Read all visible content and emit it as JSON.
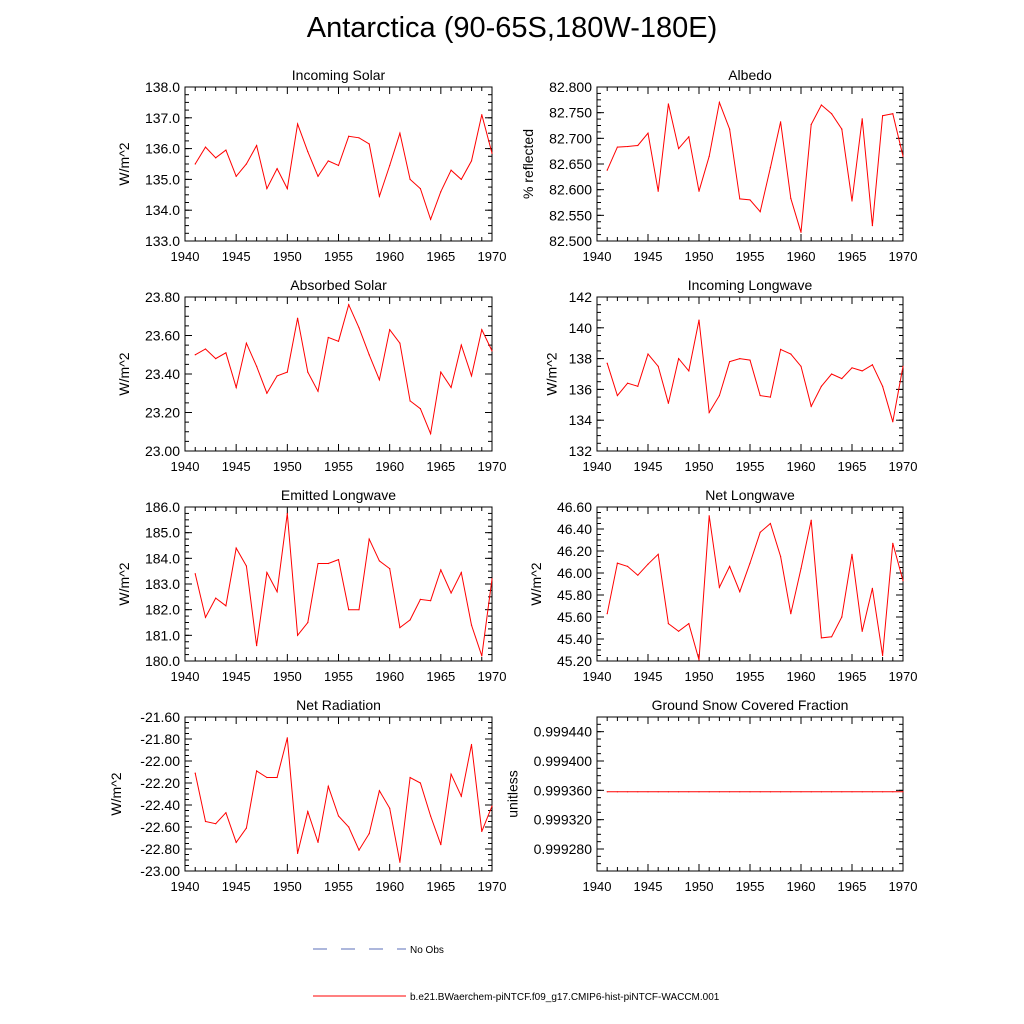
{
  "title": "Antarctica (90-65S,180W-180E)",
  "legend": {
    "obs_label": "No Obs",
    "obs_color": "#5b6fb8",
    "model_label": "b.e21.BWaerchem-piNTCF.f09_g17.CMIP6-hist-piNTCF-WACCM.001",
    "model_color": "#ff0000"
  },
  "chart_data": [
    {
      "type": "line",
      "title": "Incoming Solar",
      "ylabel": "W/m^2",
      "xlim": [
        1940,
        1970
      ],
      "ylim": [
        133.0,
        138.0
      ],
      "x_ticks": [
        "1940",
        "1945",
        "1950",
        "1955",
        "1960",
        "1965",
        "1970"
      ],
      "y_ticks": [
        "133.0",
        "134.0",
        "135.0",
        "136.0",
        "137.0",
        "138.0"
      ],
      "series": [
        {
          "color": "#ff0000",
          "x": [
            1941,
            1942,
            1943,
            1944,
            1945,
            1946,
            1947,
            1948,
            1949,
            1950,
            1951,
            1952,
            1953,
            1954,
            1955,
            1956,
            1957,
            1958,
            1959,
            1960,
            1961,
            1962,
            1963,
            1964,
            1965,
            1966,
            1967,
            1968,
            1969,
            1970
          ],
          "values": [
            135.5,
            136.05,
            135.7,
            135.95,
            135.1,
            135.5,
            136.1,
            134.7,
            135.35,
            134.7,
            136.8,
            135.9,
            135.1,
            135.6,
            135.45,
            136.4,
            136.35,
            136.15,
            134.45,
            135.45,
            136.5,
            135.0,
            134.7,
            133.7,
            134.6,
            135.3,
            135.0,
            135.6,
            137.1,
            135.85
          ]
        }
      ]
    },
    {
      "type": "line",
      "title": "Albedo",
      "ylabel": "% reflected",
      "xlim": [
        1940,
        1970
      ],
      "ylim": [
        82.5,
        82.8
      ],
      "x_ticks": [
        "1940",
        "1945",
        "1950",
        "1955",
        "1960",
        "1965",
        "1970"
      ],
      "y_ticks": [
        "82.500",
        "82.550",
        "82.600",
        "82.650",
        "82.700",
        "82.750",
        "82.800"
      ],
      "series": [
        {
          "color": "#ff0000",
          "x": [
            1941,
            1942,
            1943,
            1944,
            1945,
            1946,
            1947,
            1948,
            1949,
            1950,
            1951,
            1952,
            1953,
            1954,
            1955,
            1956,
            1957,
            1958,
            1959,
            1960,
            1961,
            1962,
            1963,
            1964,
            1965,
            1966,
            1967,
            1968,
            1969,
            1970
          ],
          "values": [
            82.638,
            82.683,
            82.684,
            82.686,
            82.71,
            82.597,
            82.767,
            82.68,
            82.703,
            82.597,
            82.665,
            82.77,
            82.718,
            82.582,
            82.58,
            82.557,
            82.643,
            82.732,
            82.583,
            82.517,
            82.727,
            82.765,
            82.748,
            82.718,
            82.578,
            82.738,
            82.53,
            82.744,
            82.748,
            82.665
          ]
        }
      ]
    },
    {
      "type": "line",
      "title": "Absorbed Solar",
      "ylabel": "W/m^2",
      "xlim": [
        1940,
        1970
      ],
      "ylim": [
        23.0,
        23.8
      ],
      "x_ticks": [
        "1940",
        "1945",
        "1950",
        "1955",
        "1960",
        "1965",
        "1970"
      ],
      "y_ticks": [
        "23.00",
        "23.20",
        "23.40",
        "23.60",
        "23.80"
      ],
      "series": [
        {
          "color": "#ff0000",
          "x": [
            1941,
            1942,
            1943,
            1944,
            1945,
            1946,
            1947,
            1948,
            1949,
            1950,
            1951,
            1952,
            1953,
            1954,
            1955,
            1956,
            1957,
            1958,
            1959,
            1960,
            1961,
            1962,
            1963,
            1964,
            1965,
            1966,
            1967,
            1968,
            1969,
            1970
          ],
          "values": [
            23.5,
            23.53,
            23.48,
            23.51,
            23.33,
            23.56,
            23.44,
            23.3,
            23.39,
            23.41,
            23.69,
            23.41,
            23.31,
            23.59,
            23.57,
            23.76,
            23.64,
            23.5,
            23.37,
            23.63,
            23.56,
            23.26,
            23.22,
            23.09,
            23.41,
            23.33,
            23.55,
            23.39,
            23.63,
            23.52
          ]
        }
      ]
    },
    {
      "type": "line",
      "title": "Incoming Longwave",
      "ylabel": "W/m^2",
      "xlim": [
        1940,
        1970
      ],
      "ylim": [
        132,
        142
      ],
      "x_ticks": [
        "1940",
        "1945",
        "1950",
        "1955",
        "1960",
        "1965",
        "1970"
      ],
      "y_ticks": [
        "132",
        "134",
        "136",
        "138",
        "140",
        "142"
      ],
      "series": [
        {
          "color": "#ff0000",
          "x": [
            1941,
            1942,
            1943,
            1944,
            1945,
            1946,
            1947,
            1948,
            1949,
            1950,
            1951,
            1952,
            1953,
            1954,
            1955,
            1956,
            1957,
            1958,
            1959,
            1960,
            1961,
            1962,
            1963,
            1964,
            1965,
            1966,
            1967,
            1968,
            1969,
            1970
          ],
          "values": [
            137.7,
            135.6,
            136.4,
            136.2,
            138.3,
            137.5,
            135.1,
            138.0,
            137.2,
            140.5,
            134.5,
            135.6,
            137.8,
            138.0,
            137.9,
            135.6,
            135.5,
            138.6,
            138.3,
            137.5,
            134.9,
            136.2,
            137.0,
            136.7,
            137.4,
            137.2,
            137.6,
            136.2,
            133.9,
            137.5
          ]
        }
      ]
    },
    {
      "type": "line",
      "title": "Emitted Longwave",
      "ylabel": "W/m^2",
      "xlim": [
        1940,
        1970
      ],
      "ylim": [
        180.0,
        186.0
      ],
      "x_ticks": [
        "1940",
        "1945",
        "1950",
        "1955",
        "1960",
        "1965",
        "1970"
      ],
      "y_ticks": [
        "180.0",
        "181.0",
        "182.0",
        "183.0",
        "184.0",
        "185.0",
        "186.0"
      ],
      "series": [
        {
          "color": "#ff0000",
          "x": [
            1941,
            1942,
            1943,
            1944,
            1945,
            1946,
            1947,
            1948,
            1949,
            1950,
            1951,
            1952,
            1953,
            1954,
            1955,
            1956,
            1957,
            1958,
            1959,
            1960,
            1961,
            1962,
            1963,
            1964,
            1965,
            1966,
            1967,
            1968,
            1969,
            1970
          ],
          "values": [
            183.4,
            181.7,
            182.45,
            182.15,
            184.4,
            183.7,
            180.6,
            183.45,
            182.7,
            185.75,
            181.0,
            181.5,
            183.8,
            183.8,
            183.95,
            182.0,
            182.0,
            184.75,
            183.9,
            183.6,
            181.3,
            181.6,
            182.4,
            182.35,
            183.55,
            182.65,
            183.45,
            181.4,
            180.2,
            183.2
          ]
        }
      ]
    },
    {
      "type": "line",
      "title": "Net Longwave",
      "ylabel": "W/m^2",
      "xlim": [
        1940,
        1970
      ],
      "ylim": [
        45.2,
        46.6
      ],
      "x_ticks": [
        "1940",
        "1945",
        "1950",
        "1955",
        "1960",
        "1965",
        "1970"
      ],
      "y_ticks": [
        "45.20",
        "45.40",
        "45.60",
        "45.80",
        "46.00",
        "46.20",
        "46.40",
        "46.60"
      ],
      "series": [
        {
          "color": "#ff0000",
          "x": [
            1941,
            1942,
            1943,
            1944,
            1945,
            1946,
            1947,
            1948,
            1949,
            1950,
            1951,
            1952,
            1953,
            1954,
            1955,
            1956,
            1957,
            1958,
            1959,
            1960,
            1961,
            1962,
            1963,
            1964,
            1965,
            1966,
            1967,
            1968,
            1969,
            1970
          ],
          "values": [
            45.63,
            46.09,
            46.06,
            45.98,
            46.08,
            46.17,
            45.54,
            45.47,
            45.54,
            45.21,
            46.52,
            45.87,
            46.06,
            45.83,
            46.09,
            46.37,
            46.45,
            46.15,
            45.63,
            46.04,
            46.48,
            45.41,
            45.42,
            45.6,
            46.17,
            45.47,
            45.86,
            45.25,
            46.27,
            45.93
          ]
        }
      ]
    },
    {
      "type": "line",
      "title": "Net Radiation",
      "ylabel": "W/m^2",
      "xlim": [
        1940,
        1970
      ],
      "ylim": [
        -23.0,
        -21.6
      ],
      "x_ticks": [
        "1940",
        "1945",
        "1950",
        "1955",
        "1960",
        "1965",
        "1970"
      ],
      "y_ticks": [
        "-23.00",
        "-22.80",
        "-22.60",
        "-22.40",
        "-22.20",
        "-22.00",
        "-21.80",
        "-21.60"
      ],
      "series": [
        {
          "color": "#ff0000",
          "x": [
            1941,
            1942,
            1943,
            1944,
            1945,
            1946,
            1947,
            1948,
            1949,
            1950,
            1951,
            1952,
            1953,
            1954,
            1955,
            1956,
            1957,
            1958,
            1959,
            1960,
            1961,
            1962,
            1963,
            1964,
            1965,
            1966,
            1967,
            1968,
            1969,
            1970
          ],
          "values": [
            -22.11,
            -22.55,
            -22.57,
            -22.47,
            -22.74,
            -22.61,
            -22.09,
            -22.15,
            -22.15,
            -21.79,
            -22.84,
            -22.46,
            -22.74,
            -22.23,
            -22.5,
            -22.6,
            -22.81,
            -22.66,
            -22.27,
            -22.43,
            -22.92,
            -22.15,
            -22.2,
            -22.5,
            -22.76,
            -22.12,
            -22.32,
            -21.85,
            -22.64,
            -22.41
          ]
        }
      ]
    },
    {
      "type": "line",
      "title": "Ground Snow Covered Fraction",
      "ylabel": "unitless",
      "xlim": [
        1940,
        1970
      ],
      "ylim": [
        0.99925,
        0.99946
      ],
      "x_ticks": [
        "1940",
        "1945",
        "1950",
        "1955",
        "1960",
        "1965",
        "1970"
      ],
      "y_ticks": [
        "0.999280",
        "0.999320",
        "0.999360",
        "0.999400",
        "0.999440"
      ],
      "series": [
        {
          "color": "#ff0000",
          "x": [
            1941,
            1942,
            1943,
            1944,
            1945,
            1946,
            1947,
            1948,
            1949,
            1950,
            1951,
            1952,
            1953,
            1954,
            1955,
            1956,
            1957,
            1958,
            1959,
            1960,
            1961,
            1962,
            1963,
            1964,
            1965,
            1966,
            1967,
            1968,
            1969,
            1970
          ],
          "values": [
            0.999358,
            0.999358,
            0.999358,
            0.999358,
            0.999358,
            0.999358,
            0.999358,
            0.999358,
            0.999358,
            0.999358,
            0.999358,
            0.999358,
            0.999358,
            0.999358,
            0.999358,
            0.999358,
            0.999358,
            0.999358,
            0.999358,
            0.999358,
            0.999358,
            0.999358,
            0.999358,
            0.999358,
            0.999358,
            0.999358,
            0.999358,
            0.999358,
            0.999358,
            0.999358
          ]
        }
      ]
    }
  ]
}
